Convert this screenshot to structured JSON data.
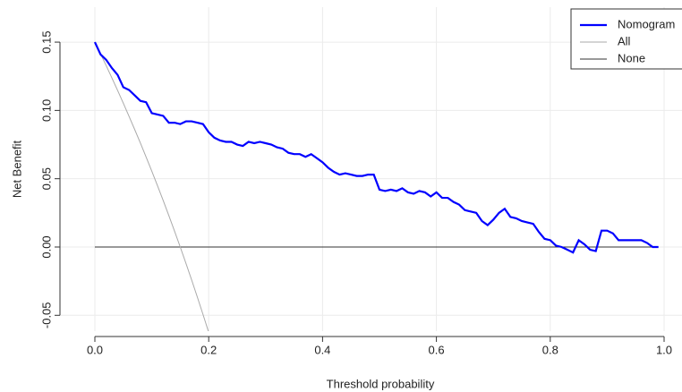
{
  "chart_data": {
    "type": "line",
    "x_label": "Threshold probability",
    "y_label": "Net Benefit",
    "xlim": [
      -0.0613,
      1.04
    ],
    "ylim": [
      -0.0616,
      0.1756
    ],
    "xticks": [
      {
        "value": 0,
        "label": "0.0"
      },
      0.2,
      0.4,
      0.6,
      0.8,
      {
        "value": 1,
        "label": "1.0"
      }
    ],
    "yticks": [
      {
        "value": -0.05,
        "label": "-0.05"
      },
      {
        "value": 0,
        "label": "0.00"
      },
      0.05,
      {
        "value": 0.1,
        "label": "0.10"
      },
      0.15
    ],
    "grid": true,
    "legend": "topright",
    "series": [
      {
        "name": "Nomogram",
        "color": "#0000ff",
        "x": [
          0,
          0.01,
          0.02,
          0.03,
          0.04,
          0.05,
          0.06,
          0.07,
          0.08,
          0.09,
          0.1,
          0.11,
          0.12,
          0.13,
          0.14,
          0.15,
          0.16,
          0.17,
          0.18,
          0.19,
          0.2,
          0.21,
          0.22,
          0.23,
          0.24,
          0.25,
          0.26,
          0.27,
          0.28,
          0.29,
          0.3,
          0.31,
          0.32,
          0.33,
          0.34,
          0.35,
          0.36,
          0.37,
          0.38,
          0.39,
          0.4,
          0.41,
          0.42,
          0.43,
          0.44,
          0.45,
          0.46,
          0.47,
          0.48,
          0.49,
          0.5,
          0.51,
          0.52,
          0.53,
          0.54,
          0.55,
          0.56,
          0.57,
          0.58,
          0.59,
          0.6,
          0.61,
          0.62,
          0.63,
          0.64,
          0.65,
          0.66,
          0.67,
          0.68,
          0.69,
          0.7,
          0.71,
          0.72,
          0.73,
          0.74,
          0.75,
          0.76,
          0.77,
          0.78,
          0.79,
          0.8,
          0.81,
          0.82,
          0.83,
          0.84,
          0.85,
          0.86,
          0.87,
          0.88,
          0.89,
          0.9,
          0.91,
          0.92,
          0.93,
          0.94,
          0.95,
          0.96,
          0.97,
          0.98,
          0.99
        ],
        "values": [
          0.15,
          0.141,
          0.137,
          0.131,
          0.126,
          0.117,
          0.115,
          0.111,
          0.107,
          0.106,
          0.098,
          0.097,
          0.096,
          0.091,
          0.091,
          0.09,
          0.092,
          0.092,
          0.091,
          0.09,
          0.084,
          0.08,
          0.078,
          0.077,
          0.077,
          0.075,
          0.074,
          0.077,
          0.076,
          0.077,
          0.076,
          0.075,
          0.073,
          0.072,
          0.069,
          0.068,
          0.068,
          0.066,
          0.068,
          0.065,
          0.062,
          0.058,
          0.055,
          0.053,
          0.054,
          0.053,
          0.052,
          0.052,
          0.053,
          0.053,
          0.042,
          0.041,
          0.042,
          0.041,
          0.043,
          0.04,
          0.039,
          0.041,
          0.04,
          0.037,
          0.04,
          0.036,
          0.036,
          0.033,
          0.031,
          0.027,
          0.026,
          0.025,
          0.019,
          0.016,
          0.02,
          0.025,
          0.028,
          0.022,
          0.021,
          0.019,
          0.018,
          0.017,
          0.011,
          0.006,
          0.005,
          0.001,
          0.0,
          -0.002,
          -0.004,
          0.005,
          0.002,
          -0.002,
          -0.003,
          0.012,
          0.012,
          0.01,
          0.005,
          0.005,
          0.005,
          0.005,
          0.005,
          0.003,
          0.0,
          0.0
        ]
      },
      {
        "name": "All",
        "color": "#aaaaaa",
        "x": [
          0,
          0.01,
          0.02,
          0.03,
          0.04,
          0.05,
          0.06,
          0.07,
          0.08,
          0.09,
          0.1,
          0.11,
          0.12,
          0.13,
          0.14,
          0.15,
          0.16,
          0.17,
          0.18,
          0.19,
          0.2
        ],
        "values": [
          0.15,
          0.1414,
          0.1327,
          0.1237,
          0.1146,
          0.1053,
          0.0957,
          0.086,
          0.0761,
          0.0659,
          0.0556,
          0.0449,
          0.0341,
          0.023,
          0.0116,
          0,
          -0.0119,
          -0.0241,
          -0.0366,
          -0.0494,
          -0.0625
        ]
      },
      {
        "name": "None",
        "color": "#333333",
        "x": [
          0,
          0.99
        ],
        "values": [
          0,
          0
        ]
      }
    ]
  }
}
